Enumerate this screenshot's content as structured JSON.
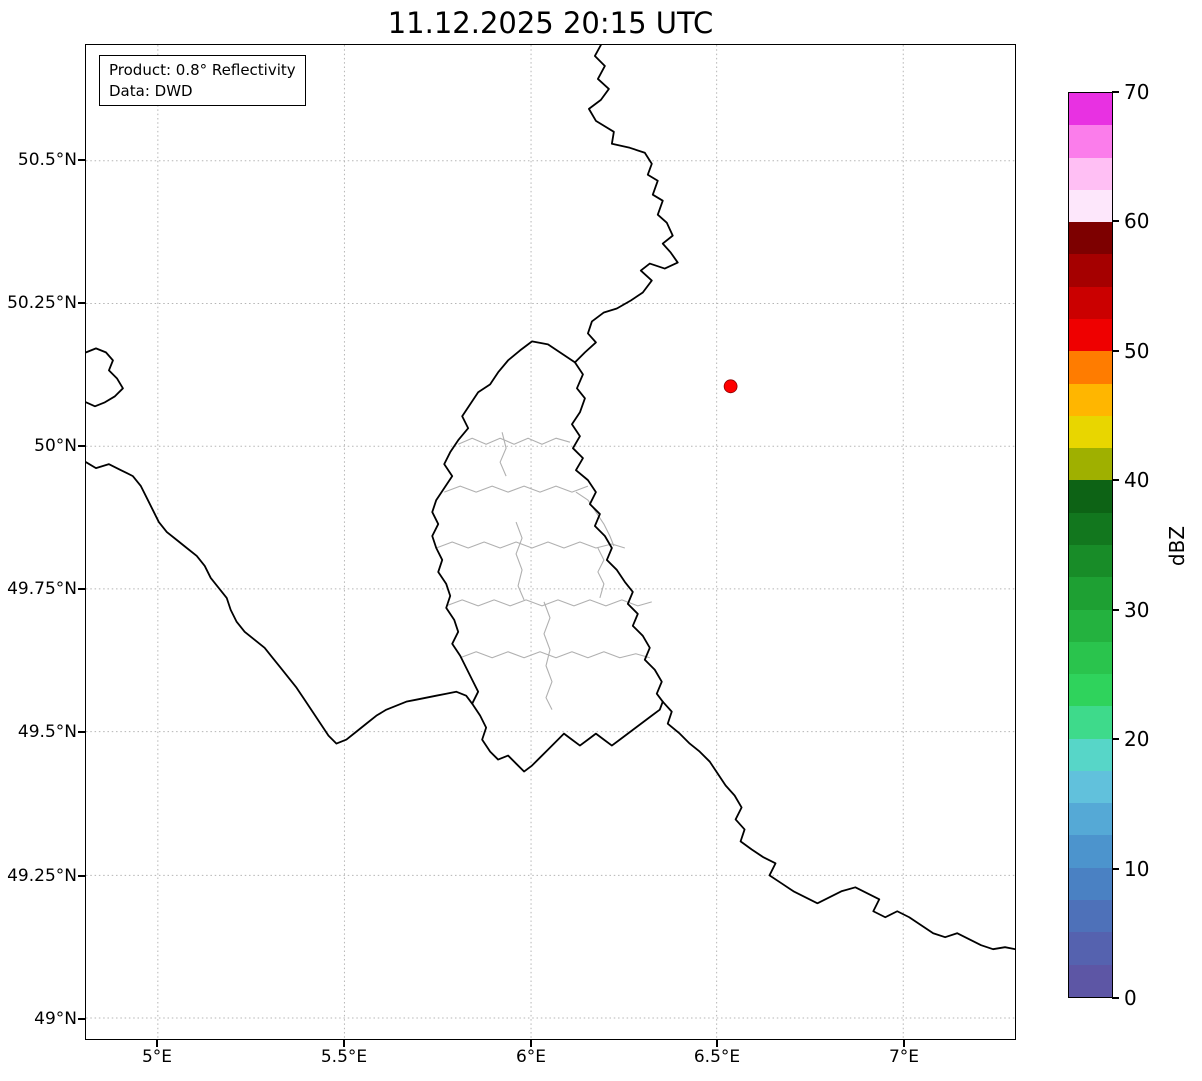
{
  "title": "11.12.2025 20:15 UTC",
  "info_box": {
    "product": "Product: 0.8° Reflectivity",
    "data_source": "Data: DWD"
  },
  "axes": {
    "x_ticks": [
      "5°E",
      "5.5°E",
      "6°E",
      "6.5°E",
      "7°E"
    ],
    "y_ticks": [
      "50.5°N",
      "50.25°N",
      "50°N",
      "49.75°N",
      "49.5°N",
      "49.25°N",
      "49°N"
    ]
  },
  "colorbar": {
    "label": "dBZ",
    "tick_labels": [
      "70",
      "60",
      "50",
      "40",
      "30",
      "20",
      "10",
      "0"
    ],
    "value_min": 0,
    "value_max": 70,
    "colors_bottom_to_top": [
      "#5d56a5",
      "#5562af",
      "#4e71b9",
      "#4a81c3",
      "#4c94cd",
      "#55a9d6",
      "#61c1dc",
      "#57d6c8",
      "#3eda8b",
      "#2fd35c",
      "#2ac44d",
      "#24b23f",
      "#1ea033",
      "#188c28",
      "#12771e",
      "#0d6315",
      "#9fb000",
      "#e8d600",
      "#ffb600",
      "#ff7c00",
      "#ef0000",
      "#cb0000",
      "#a50000",
      "#7d0000",
      "#fde7fb",
      "#ffbff4",
      "#fb7deb",
      "#e831e2"
    ]
  },
  "marker": {
    "color": "#ff0000",
    "edge_color": "#8b0000"
  },
  "map": {
    "border_color": "#000000",
    "admin_border_color": "#b0b0b0",
    "grid_color": "#b5b5b5"
  }
}
